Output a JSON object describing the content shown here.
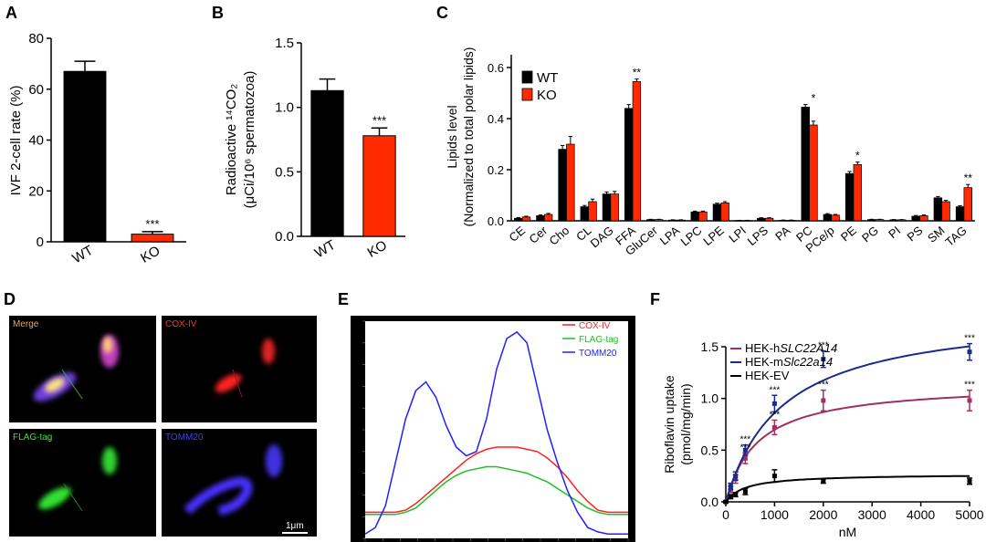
{
  "panels": {
    "A": {
      "letter": "A",
      "chart_data": {
        "type": "bar",
        "categories": [
          "WT",
          "KO"
        ],
        "values": [
          67,
          3
        ],
        "errors": [
          4,
          1
        ],
        "colors": [
          "#000000",
          "#ff2a00"
        ],
        "ylabel": "IVF 2-cell rate (%)",
        "ylim": [
          0,
          80
        ],
        "yticks": [
          "0",
          "20",
          "40",
          "60",
          "80"
        ],
        "significance": [
          "",
          "***"
        ]
      }
    },
    "B": {
      "letter": "B",
      "chart_data": {
        "type": "bar",
        "categories": [
          "WT",
          "KO"
        ],
        "values": [
          1.13,
          0.78
        ],
        "errors": [
          0.09,
          0.06
        ],
        "colors": [
          "#000000",
          "#ff2a00"
        ],
        "ylabel_line1": "Radioactive ¹⁴CO₂",
        "ylabel_line2": "(μCi/10⁶ spermatozoa)",
        "ylim": [
          0,
          1.5
        ],
        "yticks": [
          "0.0",
          "0.5",
          "1.0",
          "1.5"
        ],
        "significance": [
          "",
          "***"
        ]
      }
    },
    "C": {
      "letter": "C",
      "chart_data": {
        "type": "bar",
        "categories": [
          "CE",
          "Cer",
          "Cho",
          "CL",
          "DAG",
          "FFA",
          "GluCer",
          "LPA",
          "LPC",
          "LPE",
          "LPI",
          "LPS",
          "PA",
          "PC",
          "PCe/p",
          "PE",
          "PG",
          "PI",
          "PS",
          "SM",
          "TAG"
        ],
        "series": [
          {
            "name": "WT",
            "color": "#000000",
            "values": [
              0.01,
              0.02,
              0.28,
              0.055,
              0.105,
              0.44,
              0.005,
              0.003,
              0.035,
              0.065,
              0.001,
              0.01,
              0.002,
              0.445,
              0.025,
              0.185,
              0.005,
              0.004,
              0.018,
              0.09,
              0.055
            ],
            "errors": [
              0.003,
              0.003,
              0.015,
              0.005,
              0.008,
              0.015,
              0.001,
              0.001,
              0.003,
              0.004,
              0.001,
              0.002,
              0.001,
              0.01,
              0.003,
              0.008,
              0.001,
              0.001,
              0.003,
              0.005,
              0.004
            ]
          },
          {
            "name": "KO",
            "color": "#ff2a00",
            "values": [
              0.015,
              0.025,
              0.3,
              0.075,
              0.105,
              0.545,
              0.005,
              0.003,
              0.035,
              0.07,
              0.001,
              0.01,
              0.002,
              0.375,
              0.022,
              0.22,
              0.005,
              0.004,
              0.02,
              0.075,
              0.13
            ],
            "errors": [
              0.003,
              0.004,
              0.03,
              0.01,
              0.01,
              0.01,
              0.001,
              0.001,
              0.003,
              0.005,
              0.001,
              0.002,
              0.001,
              0.015,
              0.003,
              0.01,
              0.001,
              0.001,
              0.003,
              0.005,
              0.012
            ]
          }
        ],
        "significance": [
          "",
          "",
          "",
          "",
          "",
          "**",
          "",
          "",
          "",
          "",
          "",
          "",
          "",
          "*",
          "",
          "*",
          "",
          "",
          "",
          "",
          "**"
        ],
        "ylabel_line1": "Lipids level",
        "ylabel_line2": "(Normalized to total polar lipids)",
        "ylim": [
          0,
          0.65
        ],
        "yticks": [
          "0.0",
          "0.2",
          "0.4",
          "0.6"
        ],
        "legend": "top-left"
      }
    },
    "D": {
      "letter": "D",
      "channels": [
        "Merge",
        "COX-IV",
        "FLAG-tag",
        "TOMM20"
      ],
      "channel_colors": [
        "#f0a060",
        "#ff3030",
        "#40e040",
        "#4040ff"
      ],
      "scale_bar": "1μm"
    },
    "E": {
      "letter": "E",
      "chart_data": {
        "type": "line",
        "ylim": [
          0,
          1
        ],
        "series": [
          {
            "name": "COX-IV",
            "color": "#ff2020",
            "values": [
              0.12,
              0.12,
              0.12,
              0.12,
              0.13,
              0.16,
              0.2,
              0.24,
              0.28,
              0.32,
              0.36,
              0.39,
              0.41,
              0.42,
              0.42,
              0.42,
              0.41,
              0.4,
              0.37,
              0.33,
              0.28,
              0.22,
              0.17,
              0.13,
              0.12,
              0.12,
              0.12
            ]
          },
          {
            "name": "FLAG-tag",
            "color": "#20c020",
            "values": [
              0.11,
              0.11,
              0.11,
              0.11,
              0.12,
              0.14,
              0.18,
              0.22,
              0.26,
              0.29,
              0.31,
              0.32,
              0.33,
              0.33,
              0.32,
              0.31,
              0.3,
              0.28,
              0.26,
              0.23,
              0.2,
              0.17,
              0.14,
              0.12,
              0.11,
              0.11,
              0.11
            ]
          },
          {
            "name": "TOMM20",
            "color": "#2020ff",
            "values": [
              0.02,
              0.05,
              0.15,
              0.35,
              0.55,
              0.68,
              0.72,
              0.65,
              0.52,
              0.42,
              0.38,
              0.4,
              0.55,
              0.78,
              0.92,
              0.95,
              0.9,
              0.7,
              0.5,
              0.35,
              0.22,
              0.12,
              0.05,
              0.03,
              0.02,
              0.02,
              0.02
            ]
          }
        ],
        "legend": "top-right"
      }
    },
    "F": {
      "letter": "F",
      "chart_data": {
        "type": "scatter",
        "x": [
          0,
          100,
          200,
          400,
          1000,
          2000,
          5000
        ],
        "series": [
          {
            "name_prefix": "HEK-h",
            "name_gene": "SLC22A14",
            "color": "#a03060",
            "values": [
              0.0,
              0.12,
              0.22,
              0.42,
              0.72,
              0.98,
              0.98
            ],
            "errors": [
              0.01,
              0.03,
              0.04,
              0.05,
              0.07,
              0.1,
              0.1
            ],
            "fit": {
              "vmax": 1.15,
              "km": 650
            }
          },
          {
            "name_prefix": "HEK-m",
            "name_gene": "Slc22a14",
            "color": "#1a2a90",
            "values": [
              0.0,
              0.15,
              0.25,
              0.5,
              0.95,
              1.38,
              1.45
            ],
            "errors": [
              0.01,
              0.03,
              0.04,
              0.05,
              0.08,
              0.08,
              0.08
            ],
            "fit": {
              "vmax": 1.85,
              "km": 1150
            }
          },
          {
            "name_prefix": "HEK-EV",
            "name_gene": "",
            "color": "#000000",
            "values": [
              0.0,
              0.05,
              0.07,
              0.1,
              0.25,
              0.2,
              0.2
            ],
            "errors": [
              0.01,
              0.02,
              0.02,
              0.03,
              0.06,
              0.02,
              0.03
            ],
            "fit": {
              "vmax": 0.27,
              "km": 400
            }
          }
        ],
        "significance": [
          "",
          "",
          "",
          "***",
          "***",
          "***",
          "***"
        ],
        "xlabel": "nM",
        "ylabel_line1": "Riboflavin uptake",
        "ylabel_line2": "(pmol/mg/min)",
        "xlim": [
          0,
          5000
        ],
        "ylim": [
          0,
          1.5
        ],
        "xticks": [
          "0",
          "1000",
          "2000",
          "3000",
          "4000",
          "5000"
        ],
        "yticks": [
          "0.0",
          "0.5",
          "1.0",
          "1.5"
        ],
        "legend": "top-left"
      }
    }
  }
}
